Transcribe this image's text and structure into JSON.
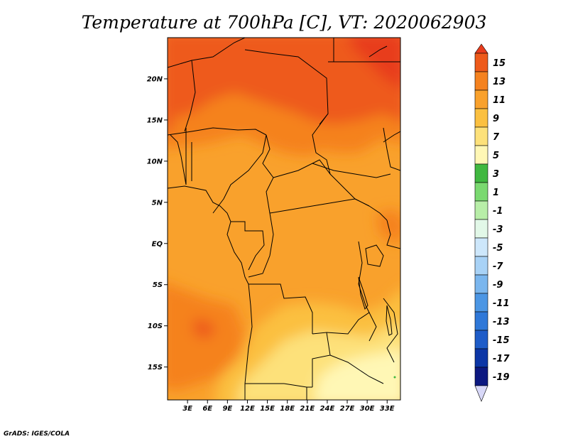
{
  "chart_data": {
    "type": "heatmap",
    "title": "Temperature at 700hPa [C], VT: 2020062903",
    "x_ticks": [
      "3E",
      "6E",
      "9E",
      "12E",
      "15E",
      "18E",
      "21E",
      "24E",
      "27E",
      "30E",
      "33E"
    ],
    "y_ticks": [
      "20N",
      "15N",
      "10N",
      "5N",
      "EQ",
      "5S",
      "10S",
      "15S"
    ],
    "lon_range": [
      0,
      35
    ],
    "lat_range": [
      -19,
      25
    ],
    "colorbar": {
      "labels": [
        "15",
        "13",
        "11",
        "9",
        "7",
        "5",
        "3",
        "1",
        "-1",
        "-3",
        "-5",
        "-7",
        "-9",
        "-11",
        "-13",
        "-15",
        "-17",
        "-19"
      ],
      "colors": [
        "#e83c1c",
        "#ee5a1a",
        "#f5821f",
        "#f9a12c",
        "#fbc040",
        "#fde17a",
        "#fff7b5",
        "#40b840",
        "#7ad970",
        "#b8eea8",
        "#e2f8e8",
        "#cde7fb",
        "#a8d2f6",
        "#7ab6ee",
        "#4c96e4",
        "#2f78d8",
        "#1e5cc8",
        "#0c36a6",
        "#0c1880",
        "#d8d8f8"
      ]
    },
    "approx_field": [
      {
        "region": "northeast corner (Libya / Egypt border)",
        "value": 15
      },
      {
        "region": "Sahel north of 15N",
        "value": 13
      },
      {
        "region": "10N to 15N band",
        "value": 11
      },
      {
        "region": "equatorial Congo basin",
        "value": 9
      },
      {
        "region": "southwest Angola",
        "value": 11
      },
      {
        "region": "southern Zambia / Zimbabwe",
        "value": 5
      }
    ]
  },
  "footer": {
    "credit": "GrADS: IGES/COLA"
  }
}
